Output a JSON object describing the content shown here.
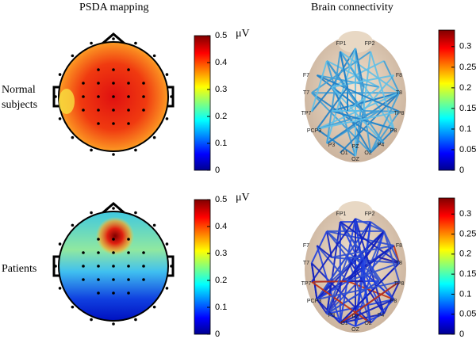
{
  "columns": [
    "PSDA mapping",
    "Brain connectivity"
  ],
  "rows": [
    "Normal subjects",
    "Patients"
  ],
  "colorbars": [
    {
      "unit": "μV",
      "lim": [
        0,
        0.5
      ],
      "ticks": [
        0,
        0.1,
        0.2,
        0.3,
        0.4,
        0.5
      ]
    },
    {
      "lim": [
        0,
        0.34
      ],
      "ticks": [
        0,
        0.05,
        0.1,
        0.15,
        0.2,
        0.25,
        0.3
      ]
    }
  ],
  "electrodes": [
    "FP1",
    "FP2",
    "F7",
    "F8",
    "T7",
    "T8",
    "TP7",
    "TP8",
    "PCP3",
    "P8",
    "P3",
    "P4",
    "O1",
    "OZ",
    "O2",
    "PZ"
  ]
}
